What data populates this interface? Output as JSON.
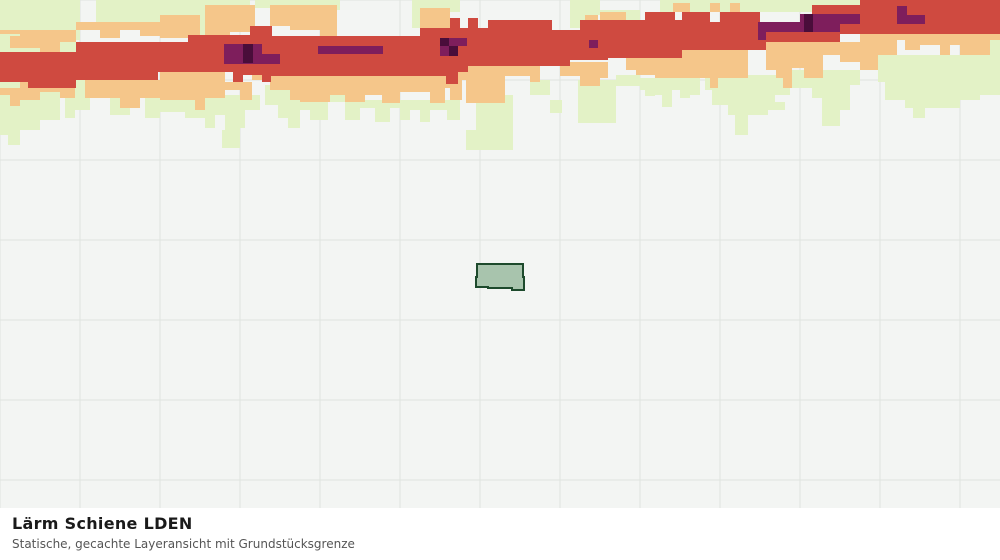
{
  "map": {
    "title": "Lärm Schiene LDEN",
    "subtitle": "Statische, gecachte Layeransicht mit Grundstücksgrenze",
    "colors": {
      "background": "#f3f5f3",
      "grid": "#dfe3df",
      "noise_low": "#e3f2c6",
      "noise_mid": "#f5c68a",
      "noise_high": "#cf4a40",
      "noise_very_high": "#7e1e5c",
      "noise_extreme": "#4a0d3a",
      "parcel_fill": "#a8c4ad",
      "parcel_stroke": "#1d4a2c"
    }
  }
}
